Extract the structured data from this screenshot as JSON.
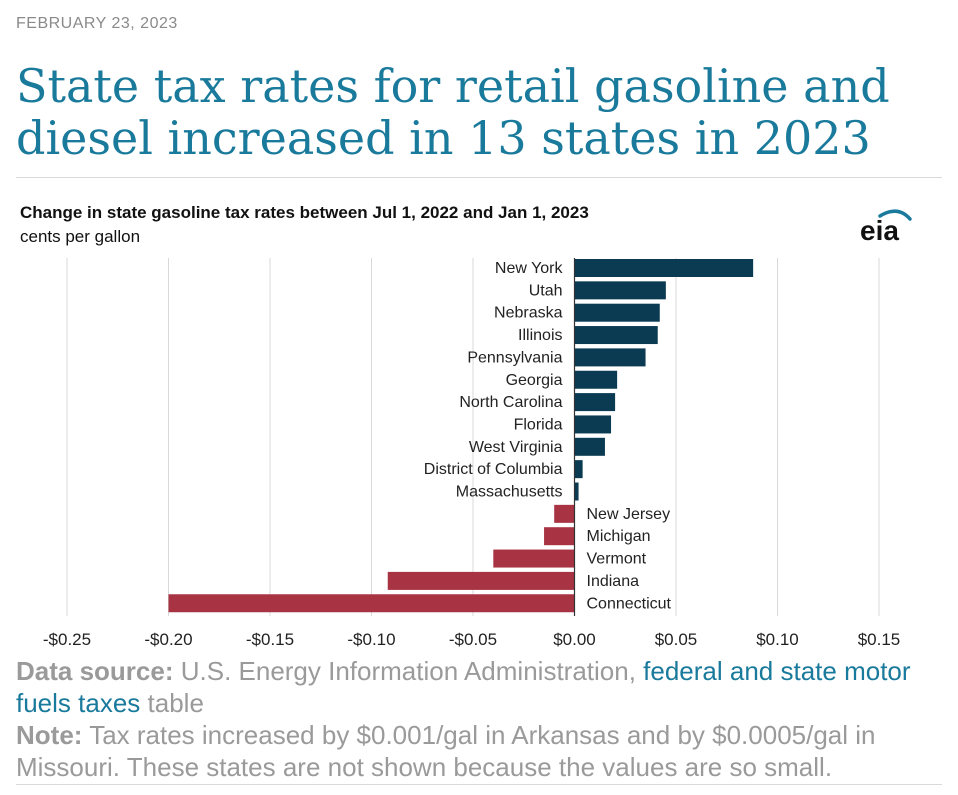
{
  "date": "FEBRUARY 23, 2023",
  "headline": "State tax rates for retail gasoline and diesel increased in 13 states in 2023",
  "logo_text": "eia",
  "colors": {
    "increase": "#0b3a53",
    "decrease": "#a83343",
    "grid": "#d9d9d9",
    "link": "#1a7a9c"
  },
  "chart_data": {
    "type": "bar",
    "orientation": "horizontal",
    "title": "Change in state gasoline tax rates between Jul 1, 2022 and Jan 1, 2023",
    "subtitle": "cents per gallon",
    "xlim": [
      -0.25,
      0.15
    ],
    "xticks": [
      -0.25,
      -0.2,
      -0.15,
      -0.1,
      -0.05,
      0.0,
      0.05,
      0.1,
      0.15
    ],
    "xtick_labels": [
      "-$0.25",
      "-$0.20",
      "-$0.15",
      "-$0.10",
      "-$0.05",
      "$0.00",
      "$0.05",
      "$0.10",
      "$0.15"
    ],
    "grid": true,
    "categories": [
      "New York",
      "Utah",
      "Nebraska",
      "Illinois",
      "Pennsylvania",
      "Georgia",
      "North Carolina",
      "Florida",
      "West Virginia",
      "District of Columbia",
      "Massachusetts",
      "New Jersey",
      "Michigan",
      "Vermont",
      "Indiana",
      "Connecticut"
    ],
    "values": [
      0.088,
      0.045,
      0.042,
      0.041,
      0.035,
      0.021,
      0.02,
      0.018,
      0.015,
      0.004,
      0.002,
      -0.01,
      -0.015,
      -0.04,
      -0.092,
      -0.2
    ]
  },
  "footer": {
    "source_label": "Data source:",
    "source_text": " U.S. Energy Information Administration, ",
    "source_link": "federal and state motor fuels taxes",
    "source_suffix": " table",
    "note_label": "Note:",
    "note_text": " Tax rates increased by $0.001/gal in Arkansas and by $0.0005/gal in Missouri. These states are not shown because the values are so small."
  }
}
